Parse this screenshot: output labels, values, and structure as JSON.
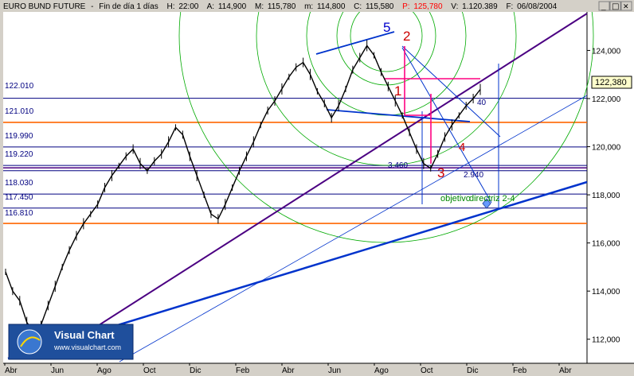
{
  "header": {
    "title": "EURO BUND FUTURE",
    "period": "Fin de día 1 días",
    "h_label": "H:",
    "h_value": "22:00",
    "a_label": "A:",
    "a_value": "114,900",
    "m_label": "M:",
    "m_value": "115,780",
    "mm_label": "m:",
    "mm_value": "114,800",
    "c_label": "C:",
    "c_value": "115,580",
    "p_label": "P:",
    "p_value": "125,780",
    "v_label": "V:",
    "v_value": "1.120.389",
    "f_label": "F:",
    "f_value": "06/08/2004"
  },
  "window_buttons": {
    "min": "_",
    "max": "□",
    "close": "✕"
  },
  "colors": {
    "grid_blue": "#000080",
    "orange": "#ff6600",
    "purple": "#4b0082",
    "trend_blue": "#0033cc",
    "arc_green": "#00aa00",
    "wave_red": "#cc0000",
    "pink": "#ff0080",
    "price_black": "#000000"
  },
  "chart_data": {
    "type": "line",
    "ylim": [
      111000,
      125600
    ],
    "yticks": [
      112000,
      114000,
      116000,
      118000,
      120000,
      122000,
      124000
    ],
    "ytick_labels": [
      "112,000",
      "114,000",
      "116,000",
      "118,000",
      "120,000",
      "122,000",
      "124,000"
    ],
    "xticks": [
      "Abr",
      "Jun",
      "Ago",
      "Oct",
      "Dic",
      "Feb",
      "Abr",
      "Jun",
      "Ago",
      "Oct",
      "Dic",
      "Feb",
      "Abr"
    ],
    "last_price": "122,380",
    "last_value": 122380,
    "price_series": [
      [
        0,
        114800
      ],
      [
        1,
        114000
      ],
      [
        2,
        113600
      ],
      [
        3,
        112700
      ],
      [
        4,
        112300
      ],
      [
        5,
        112600
      ],
      [
        6,
        113400
      ],
      [
        7,
        114200
      ],
      [
        8,
        115000
      ],
      [
        9,
        115700
      ],
      [
        10,
        116300
      ],
      [
        11,
        116800
      ],
      [
        12,
        117200
      ],
      [
        13,
        117600
      ],
      [
        14,
        118300
      ],
      [
        15,
        118800
      ],
      [
        16,
        119200
      ],
      [
        17,
        119600
      ],
      [
        18,
        119900
      ],
      [
        19,
        119300
      ],
      [
        20,
        119000
      ],
      [
        21,
        119400
      ],
      [
        22,
        119700
      ],
      [
        23,
        120200
      ],
      [
        24,
        120800
      ],
      [
        25,
        120500
      ],
      [
        26,
        119600
      ],
      [
        27,
        118800
      ],
      [
        28,
        118000
      ],
      [
        29,
        117200
      ],
      [
        30,
        117000
      ],
      [
        31,
        117600
      ],
      [
        32,
        118300
      ],
      [
        33,
        119000
      ],
      [
        34,
        119600
      ],
      [
        35,
        120200
      ],
      [
        36,
        120900
      ],
      [
        37,
        121500
      ],
      [
        38,
        121900
      ],
      [
        39,
        122400
      ],
      [
        40,
        122900
      ],
      [
        41,
        123300
      ],
      [
        42,
        123500
      ],
      [
        43,
        123000
      ],
      [
        44,
        122300
      ],
      [
        45,
        121800
      ],
      [
        46,
        121200
      ],
      [
        47,
        121700
      ],
      [
        48,
        122400
      ],
      [
        49,
        123200
      ],
      [
        50,
        123700
      ],
      [
        51,
        124200
      ],
      [
        52,
        123800
      ],
      [
        53,
        123100
      ],
      [
        54,
        122500
      ],
      [
        55,
        121900
      ],
      [
        56,
        121300
      ],
      [
        57,
        120600
      ],
      [
        58,
        119900
      ],
      [
        59,
        119300
      ],
      [
        60,
        119100
      ],
      [
        61,
        119700
      ],
      [
        62,
        120400
      ],
      [
        63,
        120900
      ],
      [
        64,
        121300
      ],
      [
        65,
        121700
      ],
      [
        66,
        122000
      ],
      [
        67,
        122380
      ]
    ],
    "horizontal_levels": [
      {
        "label": "122.010",
        "value": 122010,
        "color": "#000080"
      },
      {
        "label": "121.010",
        "value": 121010,
        "color": "#ff6600"
      },
      {
        "label": "119.990",
        "value": 119990,
        "color": "#000080"
      },
      {
        "label": "119.220",
        "value": 119220,
        "color": "#000080"
      },
      {
        "label": "118.030",
        "value": 118030,
        "color": "#000080"
      },
      {
        "label": "117.450",
        "value": 117450,
        "color": "#000080"
      },
      {
        "label": "116.810",
        "value": 116810,
        "color": "#ff6600"
      }
    ],
    "extra_level_values": [
      119000
    ],
    "wave_labels": [
      {
        "text": "5",
        "color": "#0000cc"
      },
      {
        "text": "2",
        "color": "#cc0000"
      },
      {
        "text": "1",
        "color": "#cc0000"
      },
      {
        "text": "3",
        "color": "#cc0000"
      },
      {
        "text": "4",
        "color": "#cc0000"
      }
    ],
    "annotations": {
      "fib_left": "3.460",
      "fib_right": "2.940",
      "fib_partial": "40",
      "objective": "objetivo"
    },
    "overlay_text": "directriz 2-4"
  },
  "logo": {
    "title": "Visual Chart",
    "url": "www.visualchart.com"
  }
}
